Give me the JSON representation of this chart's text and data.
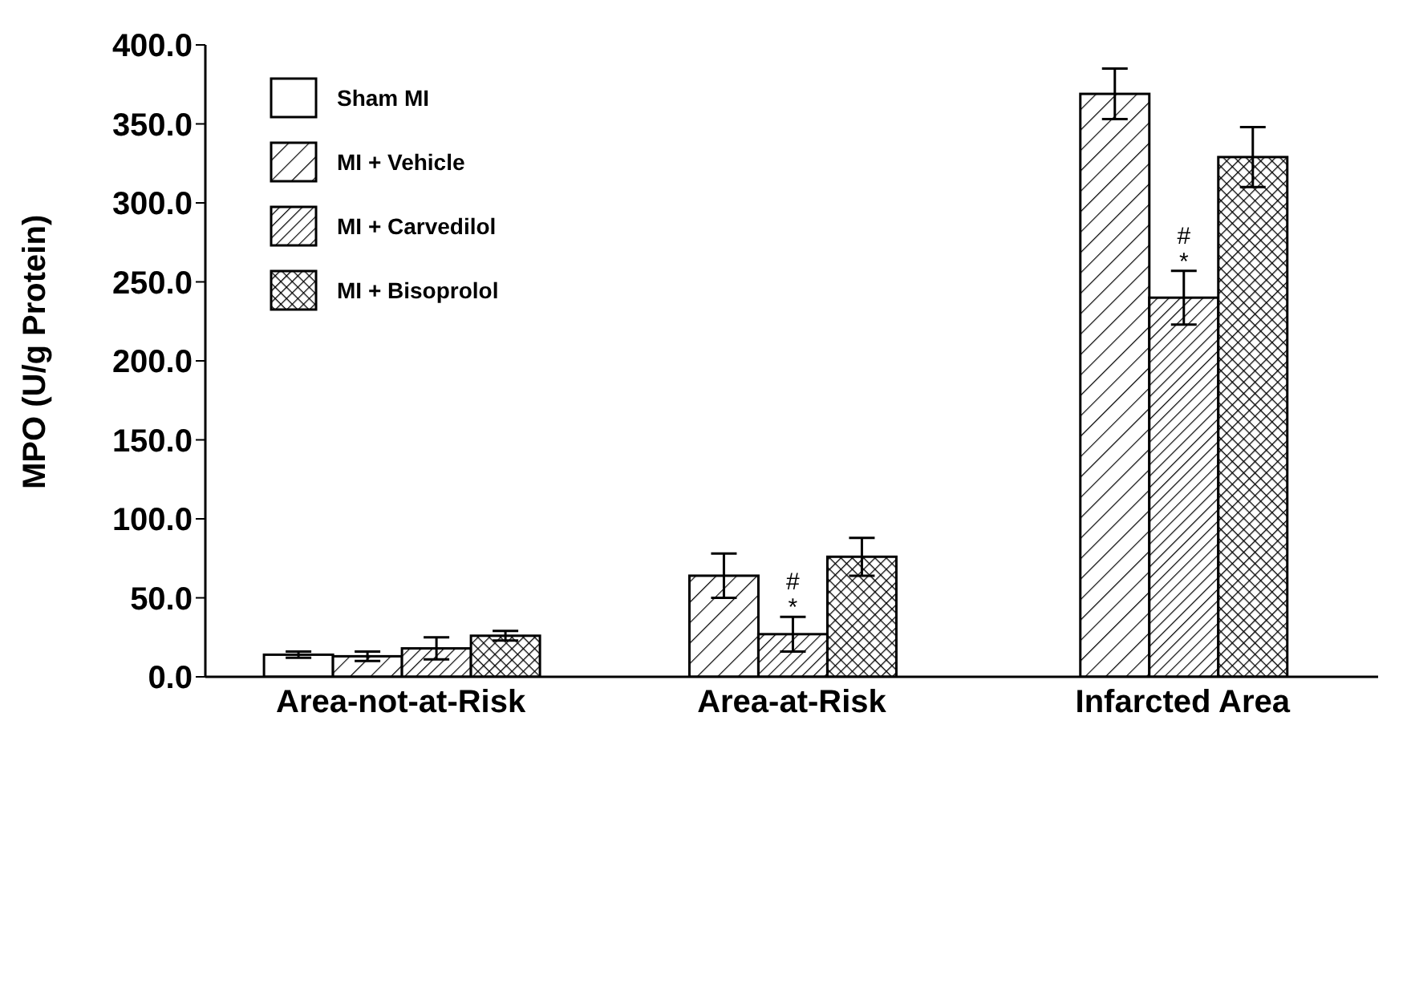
{
  "chart_data": {
    "type": "bar",
    "ylabel": "MPO (U/g Protein)",
    "categories": [
      "Area-not-at-Risk",
      "Area-at-Risk",
      "Infarcted Area"
    ],
    "series": [
      {
        "name": "Sham MI",
        "color": "#ffffff",
        "values": [
          14,
          null,
          null
        ],
        "errors": [
          2,
          null,
          null
        ]
      },
      {
        "name": "MI + Vehicle",
        "color": "#000000",
        "values": [
          13,
          64,
          369
        ],
        "errors": [
          3,
          14,
          16
        ]
      },
      {
        "name": "MI + Carvedilol",
        "color": "#000000",
        "values": [
          18,
          27,
          240
        ],
        "errors": [
          7,
          11,
          17
        ]
      },
      {
        "name": "MI + Bisoprolol",
        "color": "#000000",
        "values": [
          26,
          76,
          329
        ],
        "errors": [
          3,
          12,
          19
        ]
      }
    ],
    "ylim": [
      0,
      400
    ],
    "yticks": [
      {
        "value": 0,
        "label": "0.0"
      },
      {
        "value": 50,
        "label": "50.0"
      },
      {
        "value": 100,
        "label": "100.0"
      },
      {
        "value": 150,
        "label": "150.0"
      },
      {
        "value": 200,
        "label": "200.0"
      },
      {
        "value": 250,
        "label": "250.0"
      },
      {
        "value": 300,
        "label": "300.0"
      },
      {
        "value": 350,
        "label": "350.0"
      },
      {
        "value": 400,
        "label": "400.0"
      }
    ],
    "annotations": [
      {
        "text": "#\n*",
        "x": "Area-at-Risk",
        "y": 43
      },
      {
        "text": "#\n*",
        "x": "Infarcted Area",
        "y": 262
      }
    ],
    "grid": false,
    "legend": "top left"
  }
}
